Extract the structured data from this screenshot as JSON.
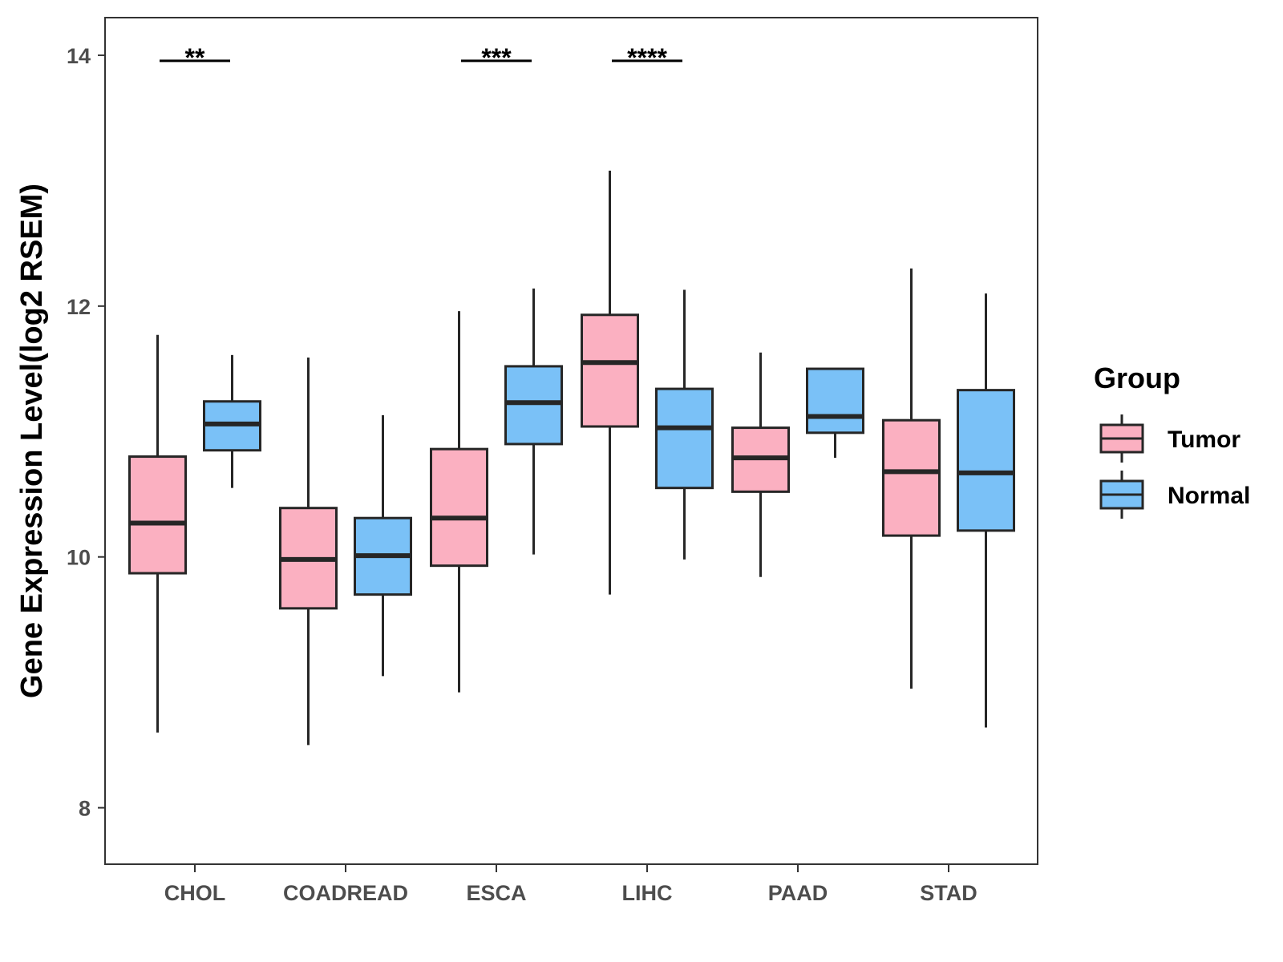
{
  "chart_data": {
    "type": "boxplot",
    "title": "",
    "xlabel": "",
    "ylabel": "Gene Expression Level(log2 RSEM)",
    "ylim": [
      7.55,
      14.3
    ],
    "yticks": [
      8,
      10,
      12,
      14
    ],
    "grid": false,
    "legend_position": "right",
    "legend_title": "Group",
    "categories": [
      "CHOL",
      "COADREAD",
      "ESCA",
      "LIHC",
      "PAAD",
      "STAD"
    ],
    "series": [
      {
        "name": "Tumor",
        "color": "#FBB0C1",
        "boxes": [
          {
            "min": 8.6,
            "q1": 9.87,
            "median": 10.27,
            "q3": 10.8,
            "max": 11.77
          },
          {
            "min": 8.5,
            "q1": 9.59,
            "median": 9.98,
            "q3": 10.39,
            "max": 11.59
          },
          {
            "min": 8.92,
            "q1": 9.93,
            "median": 10.31,
            "q3": 10.86,
            "max": 11.96
          },
          {
            "min": 9.7,
            "q1": 11.04,
            "median": 11.55,
            "q3": 11.93,
            "max": 13.08
          },
          {
            "min": 9.84,
            "q1": 10.52,
            "median": 10.79,
            "q3": 11.03,
            "max": 11.63
          },
          {
            "min": 8.95,
            "q1": 10.17,
            "median": 10.68,
            "q3": 11.09,
            "max": 12.3
          }
        ]
      },
      {
        "name": "Normal",
        "color": "#7AC1F7",
        "boxes": [
          {
            "min": 10.55,
            "q1": 10.85,
            "median": 11.06,
            "q3": 11.24,
            "max": 11.61
          },
          {
            "min": 9.05,
            "q1": 9.7,
            "median": 10.01,
            "q3": 10.31,
            "max": 11.13
          },
          {
            "min": 10.02,
            "q1": 10.9,
            "median": 11.23,
            "q3": 11.52,
            "max": 12.14
          },
          {
            "min": 9.98,
            "q1": 10.55,
            "median": 11.03,
            "q3": 11.34,
            "max": 12.13
          },
          {
            "min": 10.79,
            "q1": 10.99,
            "median": 11.12,
            "q3": 11.5,
            "max": 11.5
          },
          {
            "min": 8.64,
            "q1": 10.21,
            "median": 10.67,
            "q3": 11.33,
            "max": 12.1
          }
        ]
      }
    ],
    "annotations": [
      {
        "category": "CHOL",
        "label": "**"
      },
      {
        "category": "ESCA",
        "label": "***"
      },
      {
        "category": "LIHC",
        "label": "****"
      }
    ]
  }
}
